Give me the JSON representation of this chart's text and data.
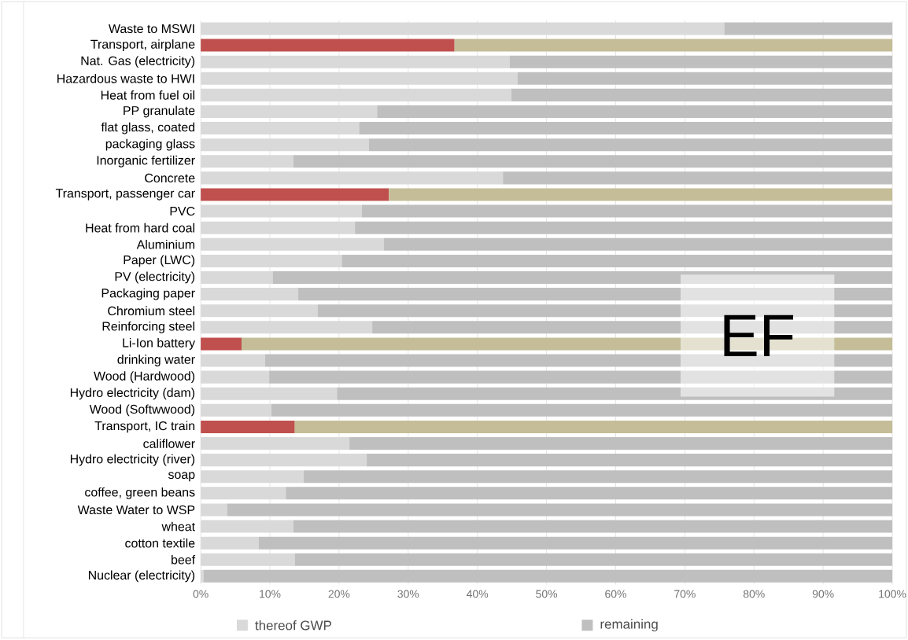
{
  "chart_data": {
    "type": "bar",
    "orientation": "horizontal",
    "stacked": true,
    "categories": [
      "Waste to MSWI",
      "Transport, airplane",
      "Nat. Gas (electricity)",
      "Hazardous waste to HWI",
      "Heat from fuel oil",
      "PP granulate",
      "flat glass, coated",
      "packaging glass",
      "Inorganic fertilizer",
      "Concrete",
      "Transport, passenger car",
      "PVC",
      "Heat from hard coal",
      "Aluminium",
      "Paper (LWC)",
      "PV (electricity)",
      "Packaging paper",
      "Chromium steel",
      "Reinforcing steel",
      "Li-Ion battery",
      "drinking water",
      "Wood (Hardwood)",
      "Hydro electricity (dam)",
      "Wood (Softwwood)",
      "Transport, IC train",
      "califlower",
      "Hydro electricity (river)",
      "soap",
      "coffee, green beans",
      "Waste Water to WSP",
      "wheat",
      "cotton textile",
      "beef",
      "Nuclear (electricity)"
    ],
    "series": [
      {
        "name": "thereof GWP",
        "color": "#d9d9d9",
        "values": [
          75.7,
          36.7,
          44.7,
          45.8,
          44.9,
          25.5,
          22.9,
          24.3,
          13.4,
          43.7,
          27.2,
          23.3,
          22.3,
          26.5,
          20.4,
          10.4,
          14.1,
          16.9,
          24.8,
          5.9,
          9.3,
          9.9,
          19.7,
          10.2,
          13.6,
          21.5,
          24.0,
          14.9,
          12.3,
          3.8,
          13.4,
          8.4,
          13.6,
          0.4
        ],
        "colors": [
          "#d9d9d9",
          "#c0504d",
          "#d9d9d9",
          "#d9d9d9",
          "#d9d9d9",
          "#d9d9d9",
          "#d9d9d9",
          "#d9d9d9",
          "#d9d9d9",
          "#d9d9d9",
          "#c0504d",
          "#d9d9d9",
          "#d9d9d9",
          "#d9d9d9",
          "#d9d9d9",
          "#d9d9d9",
          "#d9d9d9",
          "#d9d9d9",
          "#d9d9d9",
          "#c0504d",
          "#d9d9d9",
          "#d9d9d9",
          "#d9d9d9",
          "#d9d9d9",
          "#c0504d",
          "#d9d9d9",
          "#d9d9d9",
          "#d9d9d9",
          "#d9d9d9",
          "#d9d9d9",
          "#d9d9d9",
          "#d9d9d9",
          "#d9d9d9",
          "#d9d9d9"
        ]
      },
      {
        "name": "remaining",
        "color": "#bfbfbf",
        "values": [
          24.3,
          63.3,
          55.3,
          54.2,
          55.1,
          74.5,
          77.1,
          75.7,
          86.6,
          56.3,
          72.8,
          76.7,
          77.7,
          73.5,
          79.6,
          89.6,
          85.9,
          83.1,
          75.2,
          94.1,
          90.7,
          90.1,
          80.3,
          89.8,
          86.4,
          78.5,
          76.0,
          85.1,
          87.7,
          96.2,
          86.6,
          91.6,
          86.4,
          99.6
        ],
        "colors": [
          "#bfbfbf",
          "#c4bd97",
          "#bfbfbf",
          "#bfbfbf",
          "#bfbfbf",
          "#bfbfbf",
          "#bfbfbf",
          "#bfbfbf",
          "#bfbfbf",
          "#bfbfbf",
          "#c4bd97",
          "#bfbfbf",
          "#bfbfbf",
          "#bfbfbf",
          "#bfbfbf",
          "#bfbfbf",
          "#bfbfbf",
          "#bfbfbf",
          "#bfbfbf",
          "#c4bd97",
          "#bfbfbf",
          "#bfbfbf",
          "#bfbfbf",
          "#bfbfbf",
          "#c4bd97",
          "#bfbfbf",
          "#bfbfbf",
          "#bfbfbf",
          "#bfbfbf",
          "#bfbfbf",
          "#bfbfbf",
          "#bfbfbf",
          "#bfbfbf",
          "#bfbfbf"
        ]
      }
    ],
    "xlim": [
      0,
      100
    ],
    "xticks": [
      {
        "value": 0,
        "label": "0%"
      },
      {
        "value": 10,
        "label": "10%"
      },
      {
        "value": 20,
        "label": "20%"
      },
      {
        "value": 30,
        "label": "30%"
      },
      {
        "value": 40,
        "label": "40%"
      },
      {
        "value": 50,
        "label": "50%"
      },
      {
        "value": 60,
        "label": "60%"
      },
      {
        "value": 70,
        "label": "70%"
      },
      {
        "value": 80,
        "label": "80%"
      },
      {
        "value": 90,
        "label": "90%"
      },
      {
        "value": 100,
        "label": "100%"
      }
    ],
    "grid": "x",
    "legend": "bottom",
    "annotations": [
      "EF"
    ]
  }
}
